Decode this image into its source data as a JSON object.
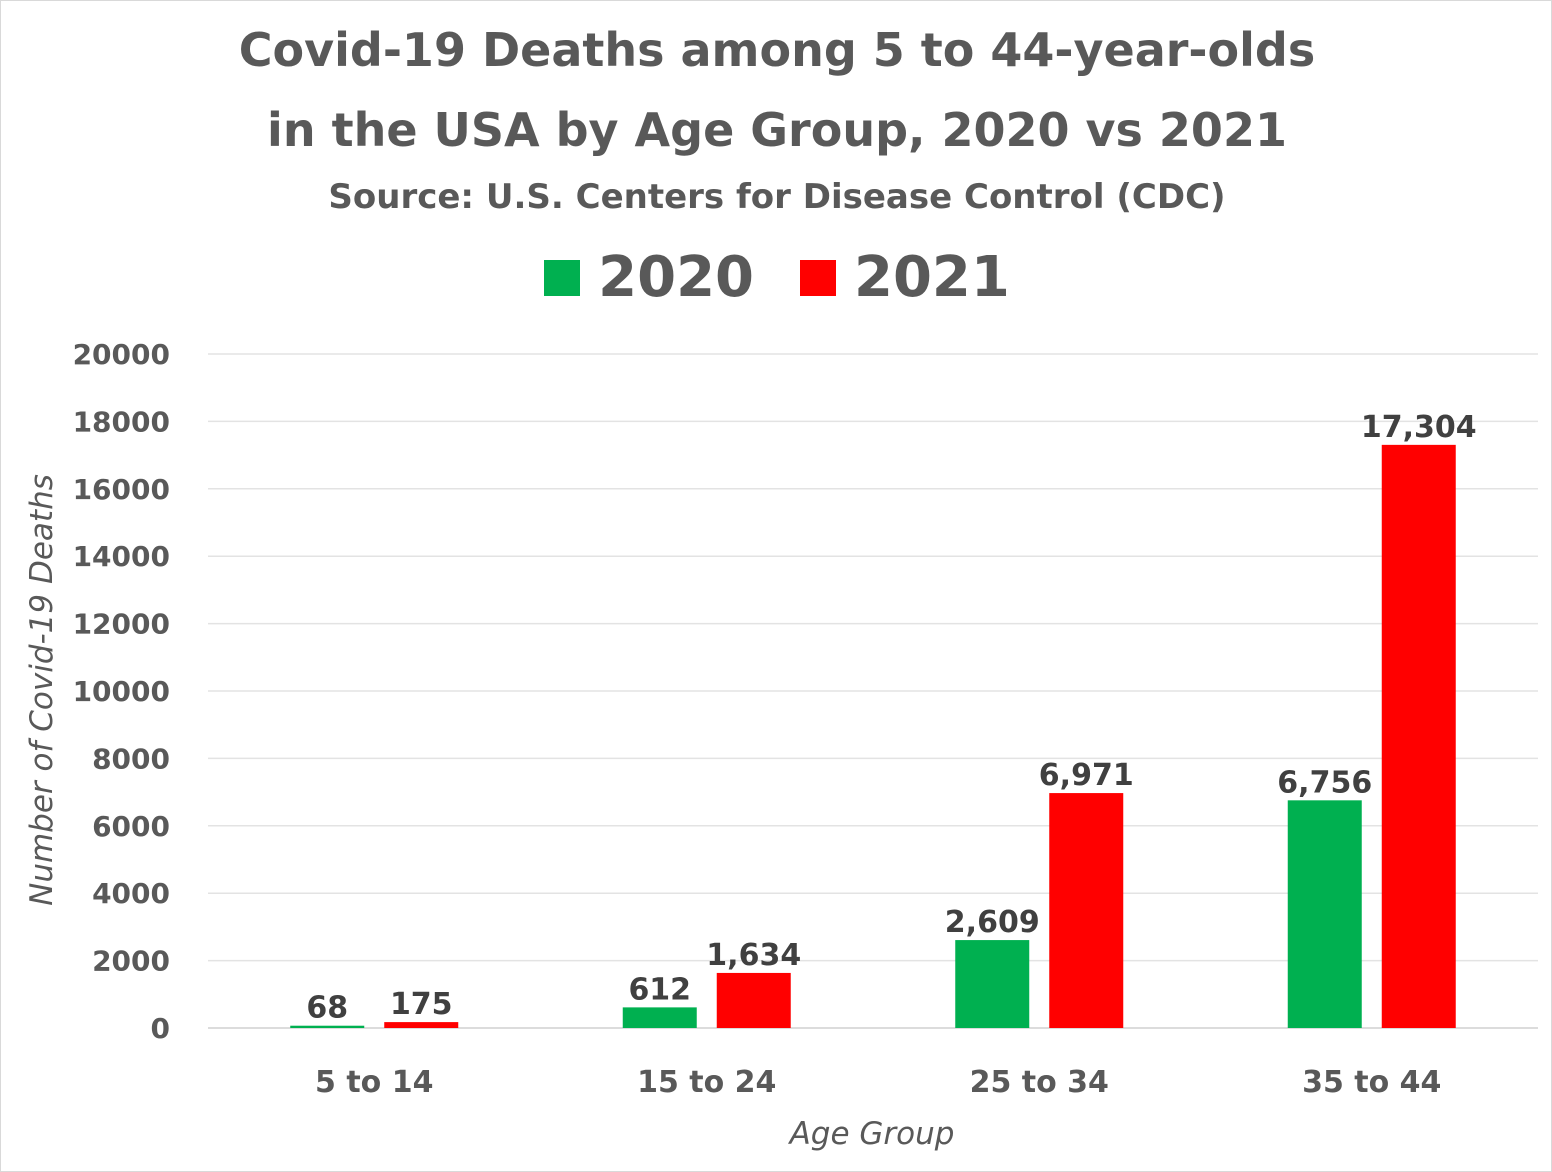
{
  "chart_data": {
    "type": "bar",
    "title": "Covid-19 Deaths among 5 to 44-year-olds",
    "title_line2": "in the USA by Age Group, 2020 vs 2021",
    "subtitle": "Source: U.S. Centers for Disease Control (CDC)",
    "xlabel": "Age Group",
    "ylabel": "Number of Covid-19 Deaths",
    "categories": [
      "5 to 14",
      "15 to 24",
      "25 to 34",
      "35 to 44"
    ],
    "series": [
      {
        "name": "2020",
        "color": "#00b050",
        "values": [
          68,
          612,
          2609,
          6756
        ],
        "labels": [
          "68",
          "612",
          "2,609",
          "6,756"
        ]
      },
      {
        "name": "2021",
        "color": "#ff0000",
        "values": [
          175,
          1634,
          6971,
          17304
        ],
        "labels": [
          "175",
          "1,634",
          "6,971",
          "17,304"
        ]
      }
    ],
    "ylim": [
      0,
      20000
    ],
    "yticks": [
      "0",
      "2000",
      "4000",
      "6000",
      "8000",
      "10000",
      "12000",
      "14000",
      "16000",
      "18000",
      "20000"
    ],
    "grid": true,
    "legend": "top-center"
  }
}
